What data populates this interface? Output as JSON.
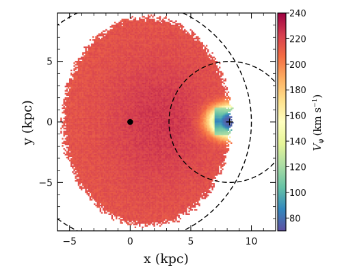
{
  "chart_data": {
    "type": "heatmap",
    "xlabel": "x (kpc)",
    "ylabel": "y (kpc)",
    "xlim": [
      -6,
      12
    ],
    "ylim": [
      -9,
      9
    ],
    "x_ticks": [
      -5,
      0,
      5,
      10
    ],
    "y_ticks": [
      -5,
      0,
      5
    ],
    "x_tick_labels": [
      "−5",
      "0",
      "5",
      "10"
    ],
    "y_tick_labels": [
      "−5",
      "0",
      "5"
    ],
    "grid": false,
    "colorbar": {
      "label": "V_φ (km s⁻¹)",
      "label_main": "V",
      "label_sub": "φ",
      "label_units": "(km s",
      "label_exp": "−1",
      "label_close": ")",
      "range": [
        70,
        240
      ],
      "ticks": [
        80,
        100,
        120,
        140,
        160,
        180,
        200,
        220,
        240
      ],
      "colormap": "Spectral_r",
      "colors": [
        "#5e4fa2",
        "#3288bd",
        "#66c2a5",
        "#abdda4",
        "#e6f598",
        "#ffffbf",
        "#fee08b",
        "#fdae61",
        "#f46d43",
        "#d53e4f",
        "#9e0142"
      ]
    },
    "markers": [
      {
        "label": "galactic-center",
        "symbol": "dot",
        "x": 0,
        "y": 0
      },
      {
        "label": "observer",
        "symbol": "plus",
        "x": 8.2,
        "y": 0
      }
    ],
    "circles": [
      {
        "cx": 0,
        "cy": 0,
        "r": 10,
        "style": "dashed"
      },
      {
        "cx": 8.2,
        "cy": 0,
        "r": 5,
        "style": "dashed"
      }
    ],
    "field_model": {
      "extent_center": [
        1.3,
        0
      ],
      "extent_radius_x": 6.9,
      "extent_radius_y": 8.6,
      "extent_hole_center": [
        8.2,
        0
      ],
      "extent_hole_radius_x": 1.8,
      "extent_hole_radius_y": 1.1,
      "background_speed": 215,
      "peak_speed": 230,
      "inner_low_speed": 75,
      "inner_low_center": [
        8.3,
        0
      ],
      "inner_low_radius_x": 1.6,
      "inner_low_radius_y": 1.15
    }
  }
}
